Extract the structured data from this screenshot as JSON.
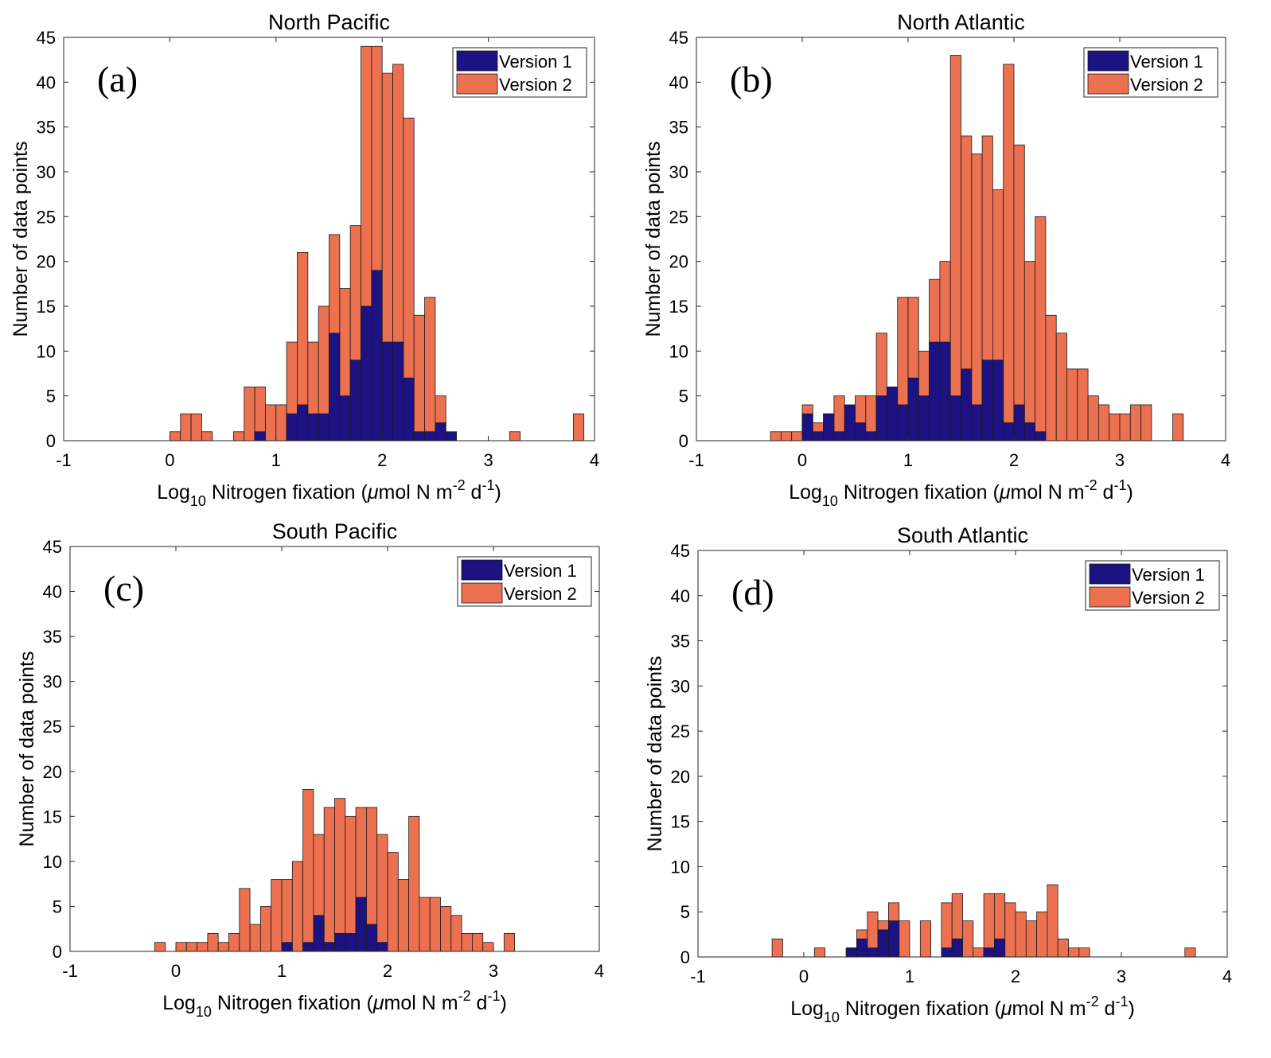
{
  "colors": {
    "version1": "#1c1282",
    "version2": "#ec7150",
    "bar_edge": "#1a1a1a"
  },
  "chart_data": [
    {
      "type": "bar",
      "stacking": "overlay",
      "panel_letter": "(a)",
      "title": "North Pacific",
      "xlabel_parts": [
        "Log",
        "10",
        " Nitrogen fixation (",
        "μ",
        "mol N m",
        "-2",
        " d",
        "-1",
        ")"
      ],
      "ylabel": "Number of data points",
      "xlim": [
        -1,
        4
      ],
      "ylim": [
        0,
        45
      ],
      "xticks": [
        -1,
        0,
        1,
        2,
        3,
        4
      ],
      "yticks": [
        0,
        5,
        10,
        15,
        20,
        25,
        30,
        35,
        40,
        45
      ],
      "legend_position": "top-right",
      "bin_start": 0.0,
      "bin_width": 0.1,
      "series": [
        {
          "name": "Version 2",
          "values": [
            1,
            3,
            3,
            1,
            0,
            0,
            1,
            6,
            6,
            4,
            4,
            11,
            21,
            11,
            15,
            23,
            17,
            24,
            44,
            44,
            41,
            42,
            36,
            14,
            16,
            5,
            0,
            0,
            0,
            0,
            0,
            0,
            0,
            0,
            0,
            0,
            0,
            0,
            3
          ]
        },
        {
          "name": "Version 1",
          "values": [
            0,
            0,
            0,
            0,
            0,
            0,
            0,
            0,
            1,
            0,
            0,
            3,
            4,
            3,
            3,
            12,
            5,
            9,
            15,
            19,
            11,
            11,
            7,
            1,
            1,
            2,
            1
          ]
        }
      ],
      "extra_version2_bins": [
        {
          "x": 3.2,
          "value": 1
        }
      ]
    },
    {
      "type": "bar",
      "stacking": "overlay",
      "panel_letter": "(b)",
      "title": "North Atlantic",
      "xlabel_parts": [
        "Log",
        "10",
        " Nitrogen fixation (",
        "μ",
        "mol N m",
        "-2",
        " d",
        "-1",
        ")"
      ],
      "ylabel": "Number of data points",
      "xlim": [
        -1,
        4
      ],
      "ylim": [
        0,
        45
      ],
      "xticks": [
        -1,
        0,
        1,
        2,
        3,
        4
      ],
      "yticks": [
        0,
        5,
        10,
        15,
        20,
        25,
        30,
        35,
        40,
        45
      ],
      "legend_position": "top-right",
      "bin_start": -0.3,
      "bin_width": 0.1,
      "series": [
        {
          "name": "Version 2",
          "values": [
            1,
            1,
            1,
            4,
            2,
            3,
            5,
            2,
            5,
            5,
            12,
            3,
            16,
            16,
            10,
            18,
            20,
            43,
            34,
            32,
            34,
            28,
            42,
            33,
            20,
            25,
            14,
            12,
            8,
            8,
            5,
            4,
            3,
            3,
            4,
            4,
            0,
            0,
            3
          ]
        },
        {
          "name": "Version 1",
          "values": [
            0,
            0,
            0,
            3,
            1,
            3,
            1,
            4,
            2,
            1,
            5,
            6,
            4,
            7,
            5,
            11,
            11,
            5,
            8,
            4,
            9,
            9,
            2,
            4,
            2,
            1
          ]
        }
      ]
    },
    {
      "type": "bar",
      "stacking": "overlay",
      "panel_letter": "(c)",
      "title": "South Pacific",
      "xlabel_parts": [
        "Log",
        "10",
        " Nitrogen fixation (",
        "μ",
        "mol N m",
        "-2",
        " d",
        "-1",
        ")"
      ],
      "ylabel": "Number of data points",
      "xlim": [
        -1,
        4
      ],
      "ylim": [
        0,
        45
      ],
      "xticks": [
        -1,
        0,
        1,
        2,
        3,
        4
      ],
      "yticks": [
        0,
        5,
        10,
        15,
        20,
        25,
        30,
        35,
        40,
        45
      ],
      "legend_position": "top-right",
      "bin_start": -0.2,
      "bin_width": 0.1,
      "series": [
        {
          "name": "Version 2",
          "values": [
            1,
            0,
            1,
            1,
            1,
            2,
            1,
            2,
            7,
            3,
            5,
            8,
            8,
            10,
            18,
            13,
            16,
            17,
            15,
            16,
            16,
            13,
            11,
            8,
            15,
            6,
            6,
            5,
            4,
            2,
            2,
            1,
            0,
            2
          ]
        },
        {
          "name": "Version 1",
          "values": [
            0,
            0,
            0,
            0,
            0,
            0,
            0,
            0,
            0,
            0,
            0,
            0,
            1,
            0,
            1,
            4,
            1,
            2,
            2,
            6,
            3,
            1
          ]
        }
      ]
    },
    {
      "type": "bar",
      "stacking": "overlay",
      "panel_letter": "(d)",
      "title": "South Atlantic",
      "xlabel_parts": [
        "Log",
        "10",
        " Nitrogen fixation (",
        "μ",
        "mol N m",
        "-2",
        " d",
        "-1",
        ")"
      ],
      "ylabel": "Number of data points",
      "xlim": [
        -1,
        4
      ],
      "ylim": [
        0,
        45
      ],
      "xticks": [
        -1,
        0,
        1,
        2,
        3,
        4
      ],
      "yticks": [
        0,
        5,
        10,
        15,
        20,
        25,
        30,
        35,
        40,
        45
      ],
      "legend_position": "top-right",
      "bin_start": -0.3,
      "bin_width": 0.1,
      "series": [
        {
          "name": "Version 2",
          "values": [
            2,
            0,
            0,
            0,
            1,
            0,
            0,
            1,
            3,
            5,
            4,
            6,
            4,
            0,
            4,
            0,
            6,
            7,
            4,
            1,
            7,
            7,
            6,
            5,
            4,
            5,
            8,
            2,
            1,
            1,
            0,
            0,
            0,
            0,
            0,
            0,
            0,
            0,
            0,
            1
          ]
        },
        {
          "name": "Version 1",
          "values": [
            0,
            0,
            0,
            0,
            0,
            0,
            0,
            1,
            2,
            1,
            3,
            4,
            0,
            0,
            0,
            0,
            1,
            2,
            0,
            0,
            1,
            2
          ]
        }
      ]
    }
  ]
}
